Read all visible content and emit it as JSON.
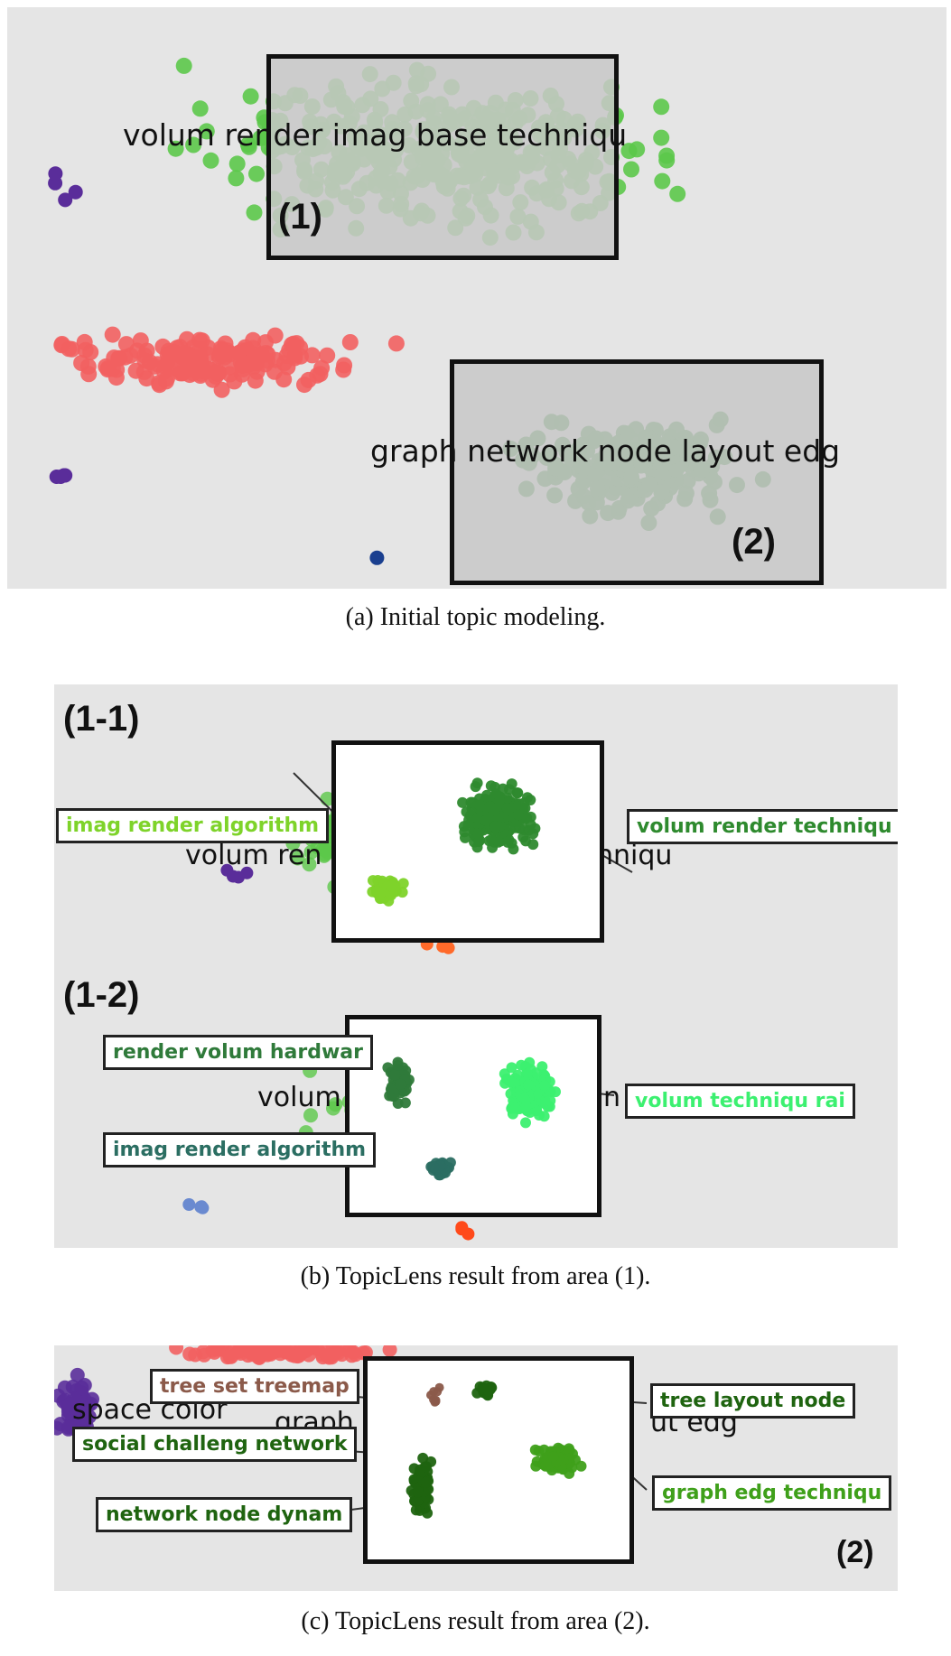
{
  "panel_a": {
    "topic_1": "volum render imag base techniqu",
    "topic_2": "graph network node layout edg",
    "area_1": "(1)",
    "area_2": "(2)",
    "caption": "(a) Initial topic modeling."
  },
  "panel_b": {
    "sub_1": {
      "label": "(1-1)",
      "bg_text": "volum ren",
      "bg_text_2": "hniqu",
      "left_tag": "imag render algorithm",
      "right_tag": "volum render techniqu"
    },
    "sub_2": {
      "label": "(1-2)",
      "bg_text": "volum",
      "bg_text_2": "n",
      "tag_1": "render volum hardwar",
      "tag_2": "imag render algorithm",
      "tag_3": "volum techniqu rai"
    },
    "caption": "(b) TopicLens result from area (1)."
  },
  "panel_c": {
    "bg_text_1": "space color",
    "bg_text_2": "graph",
    "bg_text_3": "ut edg",
    "tag_1": "tree set treemap",
    "tag_2": "social challeng network",
    "tag_3": "network node dynam",
    "tag_4": "tree layout node",
    "tag_5": "graph edg techniqu",
    "area_label": "(2)",
    "caption": "(c) TopicLens result from area (2)."
  },
  "colors": {
    "green": "#5cc84a",
    "red": "#f26161",
    "dark_green": "#2e8a2e",
    "purple": "#5a2d9a",
    "lime": "#7ed32a",
    "teal": "#2b6e62",
    "bright_green": "#3cf070",
    "forest": "#2f7a3a",
    "brown": "#8b5a4a",
    "deep_green": "#1f6410",
    "mid_green": "#3fa01a"
  }
}
